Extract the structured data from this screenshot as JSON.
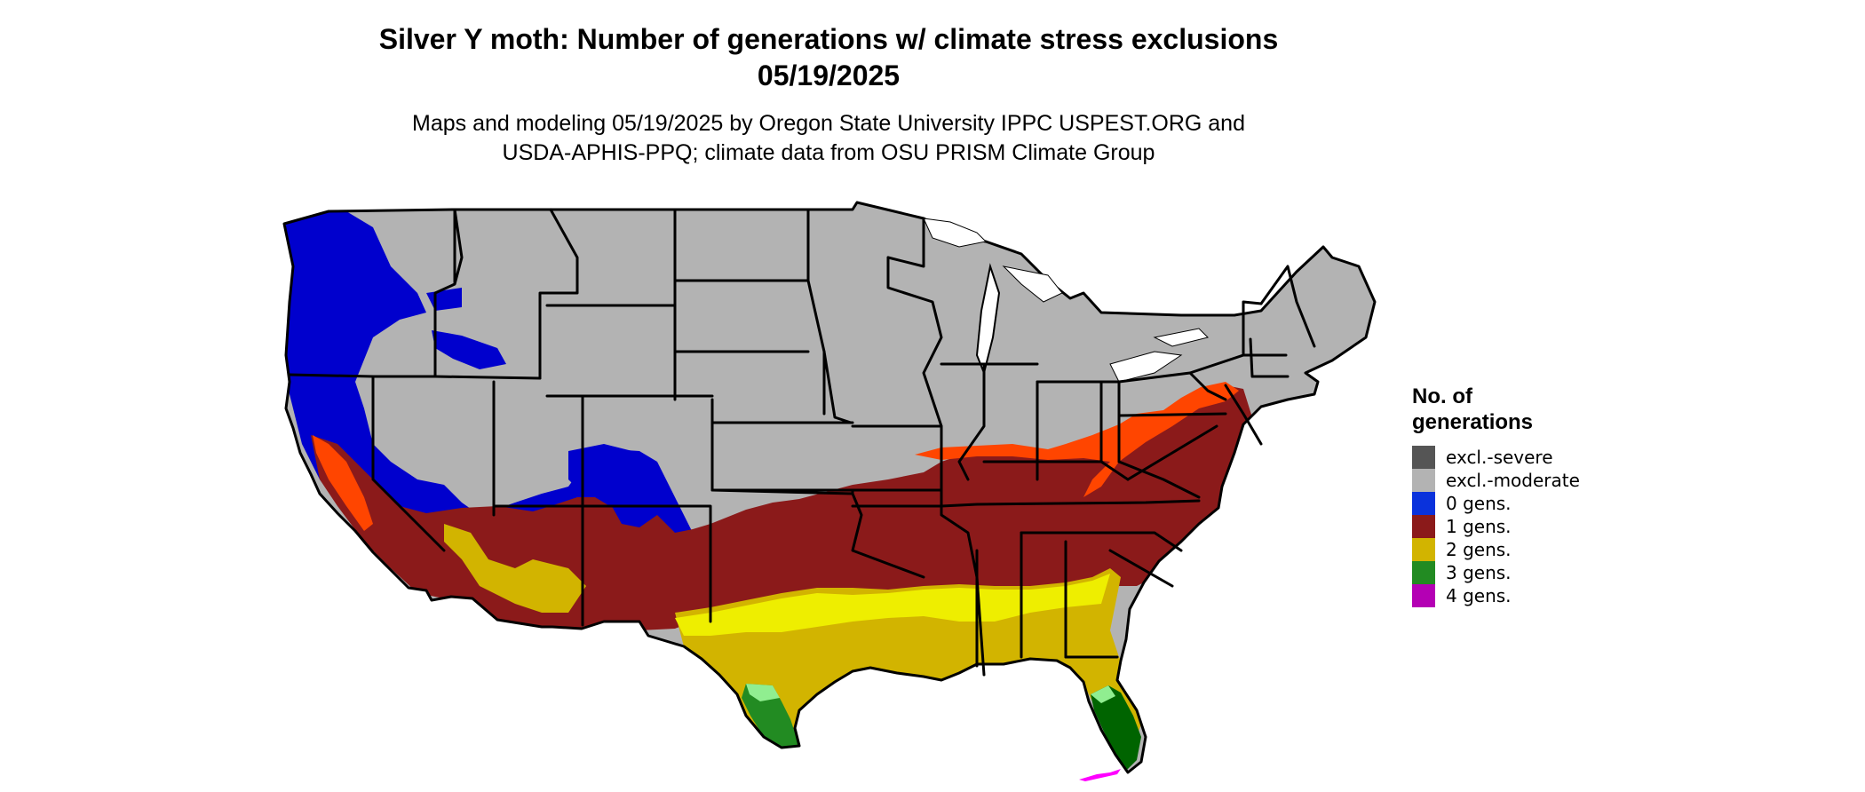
{
  "title": {
    "line1": "Silver Y moth: Number of generations w/ climate stress exclusions",
    "line2": "05/19/2025"
  },
  "subtitle": {
    "line1": "Maps and modeling 05/19/2025 by Oregon State University IPPC USPEST.ORG and",
    "line2": "USDA-APHIS-PPQ; climate data from OSU PRISM Climate Group"
  },
  "legend": {
    "title_line1": "No. of",
    "title_line2": "generations",
    "items": [
      {
        "label": "excl.-severe",
        "color": "#555555"
      },
      {
        "label": "excl.-moderate",
        "color": "#b3b3b3"
      },
      {
        "label": "0 gens.",
        "color": "#0a32dc"
      },
      {
        "label": "1 gens.",
        "color": "#8b1a1a"
      },
      {
        "label": "2 gens.",
        "color": "#d2b400"
      },
      {
        "label": "3 gens.",
        "color": "#228b22"
      },
      {
        "label": "4 gens.",
        "color": "#b400b4"
      }
    ]
  },
  "map": {
    "region": "contiguous-united-states",
    "colors": {
      "excluded_moderate": "#b3b3b3",
      "zero_gens": "#0000cd",
      "one_gen": "#8b1a1a",
      "one_gen_edge": "#ff4500",
      "two_gens": "#c8b400",
      "two_gens_bright": "#eeee00",
      "three_gens": "#006400",
      "three_gens_light": "#90ee90",
      "four_gens": "#ff00ff",
      "borders": "#000000"
    }
  }
}
